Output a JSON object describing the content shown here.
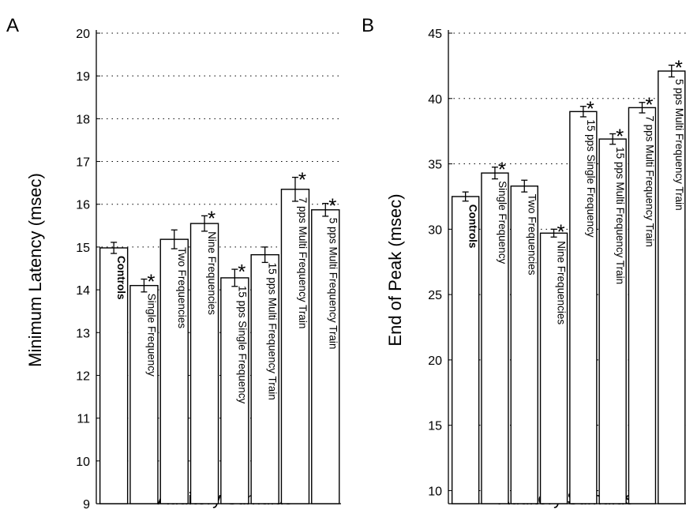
{
  "chart_data": [
    {
      "type": "bar",
      "panel": "A",
      "xlabel": "Auditory Stimulus",
      "ylabel": "Minimum Latency (msec)",
      "ylim": [
        9,
        20
      ],
      "yticks": [
        9,
        10,
        11,
        12,
        13,
        14,
        15,
        16,
        17,
        18,
        19,
        20
      ],
      "grid": "horizontal dotted",
      "categories": [
        "Controls",
        "Single Frequency",
        "Two Frequencies",
        "Nine Frequencies",
        "15 pps Single Frequency",
        "15 pps Multi Frequency Train",
        "7 pps Multi Frequency Train",
        "5 pps Multi Frequency Train"
      ],
      "values": [
        14.98,
        14.1,
        15.18,
        15.55,
        14.28,
        14.82,
        16.35,
        15.87
      ],
      "errors": [
        0.13,
        0.15,
        0.22,
        0.18,
        0.2,
        0.18,
        0.28,
        0.15
      ],
      "significant": [
        false,
        true,
        false,
        true,
        true,
        false,
        true,
        true
      ],
      "significance_marker": "*"
    },
    {
      "type": "bar",
      "panel": "B",
      "xlabel": "Auditory Stimulus",
      "ylabel": "End of Peak (msec)",
      "ylim": [
        9,
        45
      ],
      "yticks": [
        10,
        15,
        20,
        25,
        30,
        35,
        40,
        45
      ],
      "grid": "horizontal dotted",
      "categories": [
        "Controls",
        "Single Frequency",
        "Two Frequencies",
        "Nine Frequencies",
        "15 pps Single Frequency",
        "15 pps Multi Frequency Train",
        "7 pps Multi Frequency Train",
        "5 pps Multi Frequency Train"
      ],
      "values": [
        32.5,
        34.3,
        33.3,
        29.7,
        39.0,
        36.9,
        39.3,
        42.1
      ],
      "errors": [
        0.35,
        0.45,
        0.45,
        0.3,
        0.4,
        0.4,
        0.4,
        0.45
      ],
      "significant": [
        false,
        true,
        false,
        true,
        true,
        true,
        true,
        true
      ],
      "significance_marker": "*"
    }
  ]
}
